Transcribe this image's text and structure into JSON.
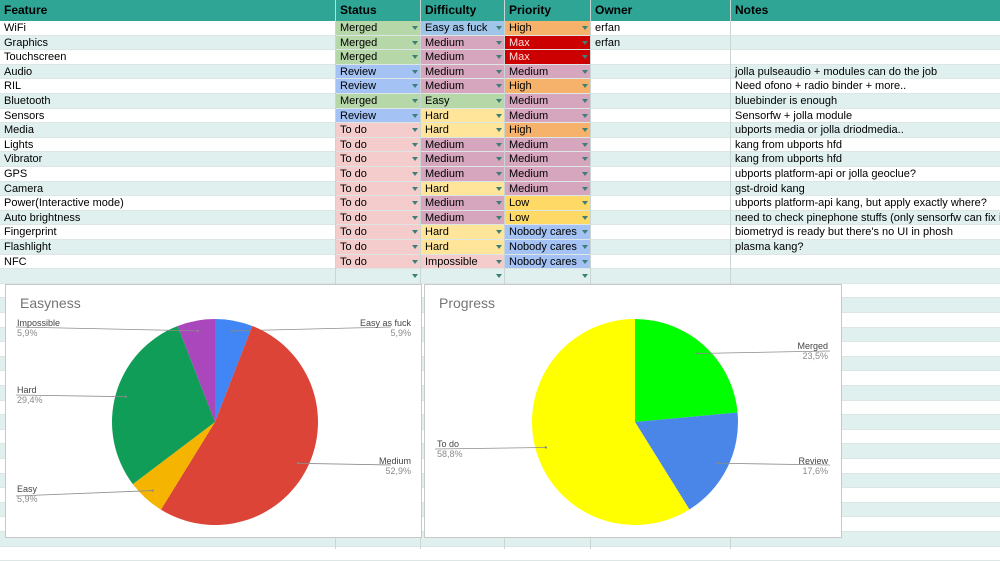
{
  "headers": [
    "Feature",
    "Status",
    "Difficulty",
    "Priority",
    "Owner",
    "Notes"
  ],
  "colors": {
    "Merged": "#b6d7a8",
    "Review": "#a4c2f4",
    "To do": "#f4cccc",
    "Easy as fuck": "#9fc5e8",
    "Easy": "#b6d7a8",
    "Medium": "#d5a6bd",
    "Hard": "#ffe599",
    "Impossible": "#f4cccc",
    "High": "#f6b26b",
    "Max": "#cc0000",
    "Low": "#ffd966",
    "Nobody cares": "#a4c2f4",
    "PriorityMedium": "#d5a6bd"
  },
  "rows": [
    {
      "feature": "WiFi",
      "status": "Merged",
      "difficulty": "Easy as fuck",
      "priority": "High",
      "owner": "erfan",
      "notes": ""
    },
    {
      "feature": "Graphics",
      "status": "Merged",
      "difficulty": "Medium",
      "priority": "Max",
      "owner": "erfan",
      "notes": ""
    },
    {
      "feature": "Touchscreen",
      "status": "Merged",
      "difficulty": "Medium",
      "priority": "Max",
      "owner": "",
      "notes": ""
    },
    {
      "feature": "Audio",
      "status": "Review",
      "difficulty": "Medium",
      "priority": "Medium",
      "owner": "",
      "notes": "jolla pulseaudio + modules can do the job"
    },
    {
      "feature": "RIL",
      "status": "Review",
      "difficulty": "Medium",
      "priority": "High",
      "owner": "",
      "notes": "Need ofono + radio binder + more.."
    },
    {
      "feature": "Bluetooth",
      "status": "Merged",
      "difficulty": "Easy",
      "priority": "Medium",
      "owner": "",
      "notes": "bluebinder is enough"
    },
    {
      "feature": "Sensors",
      "status": "Review",
      "difficulty": "Hard",
      "priority": "Medium",
      "owner": "",
      "notes": "Sensorfw + jolla module"
    },
    {
      "feature": "Media",
      "status": "To do",
      "difficulty": "Hard",
      "priority": "High",
      "owner": "",
      "notes": "ubports media or jolla driodmedia.."
    },
    {
      "feature": "Lights",
      "status": "To do",
      "difficulty": "Medium",
      "priority": "Medium",
      "owner": "",
      "notes": "kang from ubports hfd"
    },
    {
      "feature": "Vibrator",
      "status": "To do",
      "difficulty": "Medium",
      "priority": "Medium",
      "owner": "",
      "notes": "kang from ubports hfd"
    },
    {
      "feature": "GPS",
      "status": "To do",
      "difficulty": "Medium",
      "priority": "Medium",
      "owner": "",
      "notes": "ubports platform-api or jolla geoclue?"
    },
    {
      "feature": "Camera",
      "status": "To do",
      "difficulty": "Hard",
      "priority": "Medium",
      "owner": "",
      "notes": "gst-droid kang"
    },
    {
      "feature": "Power(Interactive mode)",
      "status": "To do",
      "difficulty": "Medium",
      "priority": "Low",
      "owner": "",
      "notes": "ubports platform-api kang, but apply exactly where?"
    },
    {
      "feature": "Auto brightness",
      "status": "To do",
      "difficulty": "Medium",
      "priority": "Low",
      "owner": "",
      "notes": "need to check pinephone stuffs (only sensorfw can fix it?)"
    },
    {
      "feature": "Fingerprint",
      "status": "To do",
      "difficulty": "Hard",
      "priority": "Nobody cares",
      "owner": "",
      "notes": "biometryd is ready but there's no UI in phosh"
    },
    {
      "feature": "Flashlight",
      "status": "To do",
      "difficulty": "Hard",
      "priority": "Nobody cares",
      "owner": "",
      "notes": "plasma kang?"
    },
    {
      "feature": "NFC",
      "status": "To do",
      "difficulty": "Impossible",
      "priority": "Nobody cares",
      "owner": "",
      "notes": ""
    }
  ],
  "chart_data": [
    {
      "type": "pie",
      "title": "Easyness",
      "categories": [
        "Easy as fuck",
        "Medium",
        "Easy",
        "Hard",
        "Impossible"
      ],
      "values": [
        5.9,
        52.9,
        5.9,
        29.4,
        5.9
      ],
      "labels": [
        "5,9%",
        "52,9%",
        "5,9%",
        "29,4%",
        "5,9%"
      ],
      "colors": [
        "#4285f4",
        "#db4437",
        "#f4b400",
        "#0f9d58",
        "#ab47bc"
      ]
    },
    {
      "type": "pie",
      "title": "Progress",
      "categories": [
        "Merged",
        "Review",
        "To do"
      ],
      "values": [
        23.5,
        17.6,
        58.8
      ],
      "labels": [
        "23,5%",
        "17,6%",
        "58,8%"
      ],
      "colors": [
        "#00ff00",
        "#4a86e8",
        "#ffff00"
      ]
    }
  ]
}
